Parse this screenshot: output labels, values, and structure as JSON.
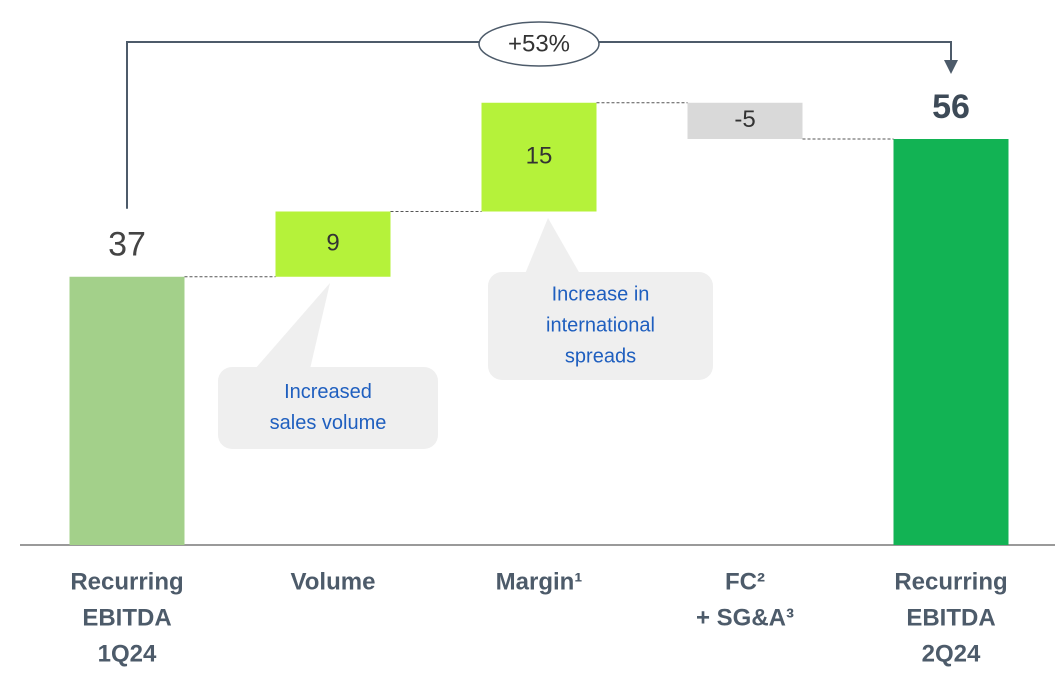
{
  "chart_data": {
    "type": "waterfall",
    "categories": [
      [
        "Recurring",
        "EBITDA",
        "1Q24"
      ],
      [
        "Volume"
      ],
      [
        "Margin¹"
      ],
      [
        "FC²",
        "+ SG&A³"
      ],
      [
        "Recurring",
        "EBITDA",
        "2Q24"
      ]
    ],
    "values": [
      37,
      9,
      15,
      -5,
      56
    ],
    "totals": [
      true,
      false,
      false,
      false,
      true
    ],
    "colors": [
      "#a3d08a",
      "#b5f23a",
      "#b5f23a",
      "#d9d9d9",
      "#12b354"
    ],
    "ylim": [
      0,
      70
    ],
    "change_label": "+53%",
    "callouts": [
      {
        "category": 1,
        "lines": [
          "Increased",
          "sales volume"
        ]
      },
      {
        "category": 2,
        "lines": [
          "Increase in",
          "international",
          "spreads"
        ]
      }
    ]
  }
}
